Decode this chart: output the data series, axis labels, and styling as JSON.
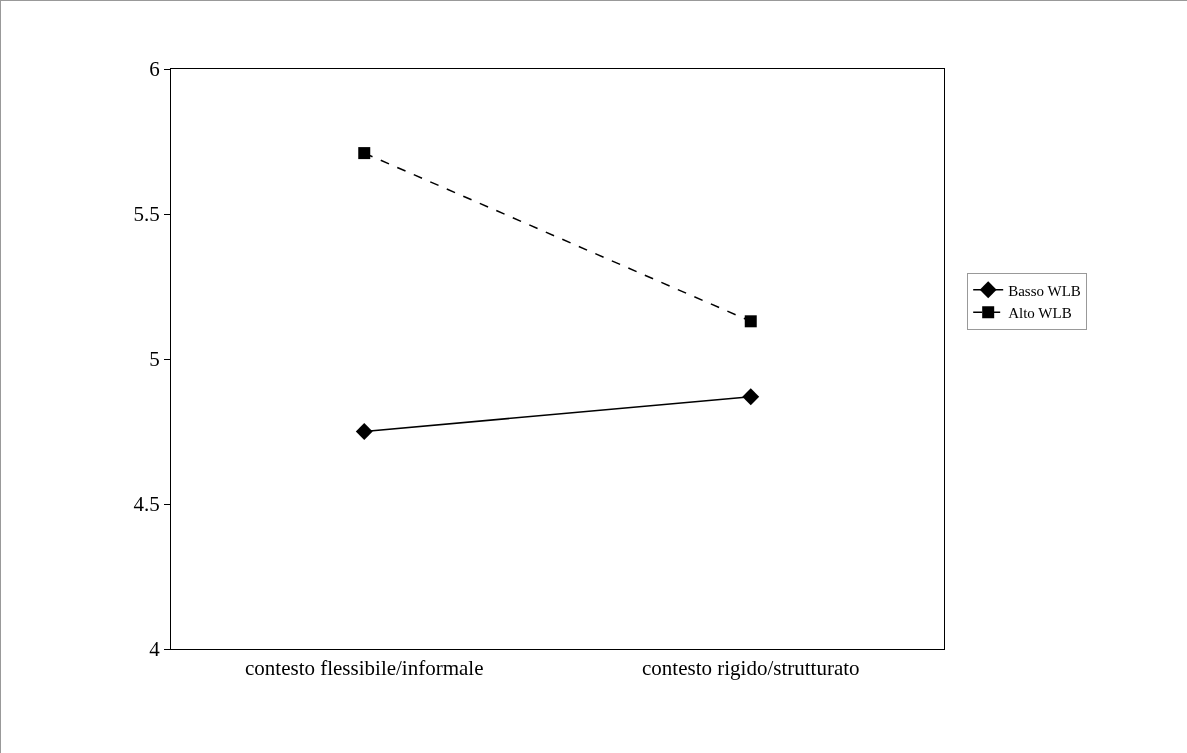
{
  "chart_data": {
    "type": "line",
    "categories": [
      "contesto flessibile/informale",
      "contesto rigido/strutturato"
    ],
    "series": [
      {
        "name": "Basso WLB",
        "color": "#000000",
        "values": [
          4.75,
          4.87
        ],
        "marker": "diamond",
        "line_style": "solid"
      },
      {
        "name": "Alto WLB",
        "color": "#000000",
        "values": [
          5.71,
          5.13
        ],
        "marker": "square",
        "line_style": "dashed"
      }
    ],
    "ylim": [
      4,
      6
    ],
    "yticks": [
      4,
      4.5,
      5,
      5.5,
      6
    ],
    "grid": false,
    "legend": "right"
  }
}
